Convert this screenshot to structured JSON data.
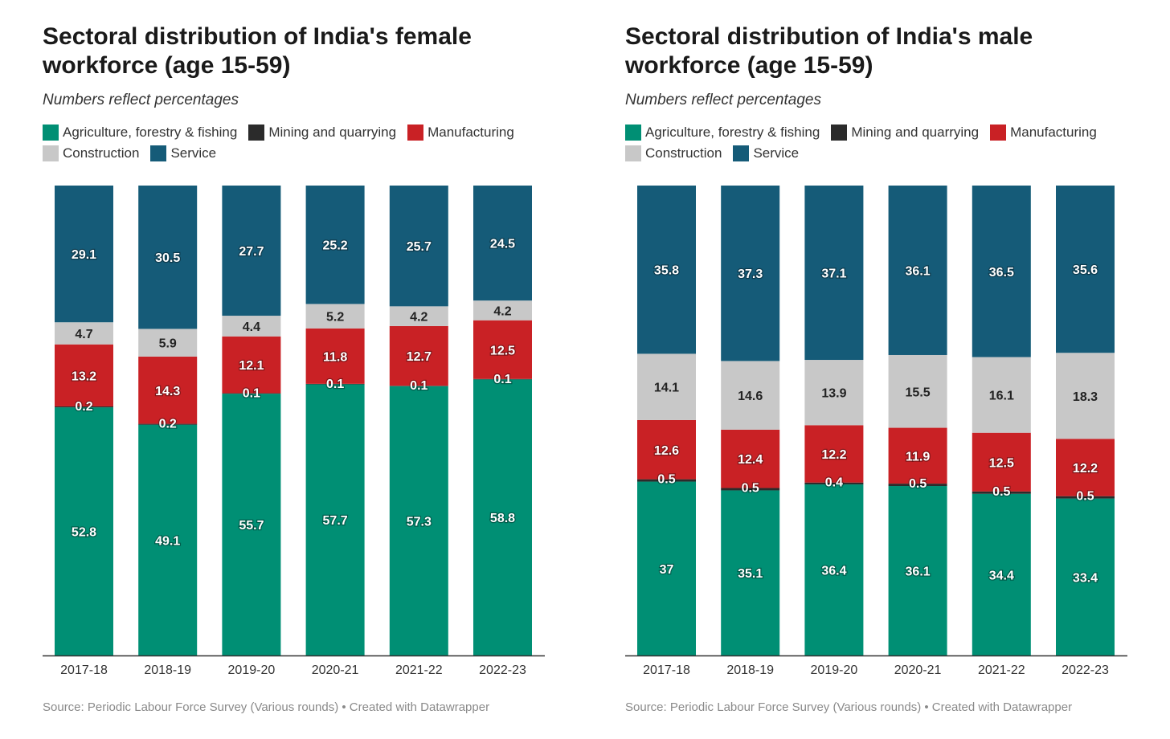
{
  "colors": {
    "agriculture": "#008f74",
    "mining": "#2b2b2b",
    "manufacturing": "#c92125",
    "construction": "#c8c8c8",
    "service": "#155b78",
    "axis": "#333333"
  },
  "legend": [
    {
      "key": "agriculture",
      "label": "Agriculture, forestry & fishing",
      "color": "#008f74"
    },
    {
      "key": "mining",
      "label": "Mining and quarrying",
      "color": "#2b2b2b"
    },
    {
      "key": "manufacturing",
      "label": "Manufacturing",
      "color": "#c92125"
    },
    {
      "key": "construction",
      "label": "Construction",
      "color": "#c8c8c8"
    },
    {
      "key": "service",
      "label": "Service",
      "color": "#155b78"
    }
  ],
  "chart_data": [
    {
      "type": "bar",
      "stacked": true,
      "title": "Sectoral distribution of India's female workforce (age 15-59)",
      "subtitle": "Numbers reflect percentages",
      "source": "Source: Periodic Labour Force Survey (Various rounds) • Created with Datawrapper",
      "categories": [
        "2017-18",
        "2018-19",
        "2019-20",
        "2020-21",
        "2021-22",
        "2022-23"
      ],
      "series": [
        {
          "name": "Agriculture, forestry & fishing",
          "labels": [
            "52.8",
            "49.1",
            "55.7",
            "57.7",
            "57.3",
            "58.8"
          ],
          "values": [
            52.8,
            49.1,
            55.7,
            57.7,
            57.3,
            58.8
          ]
        },
        {
          "name": "Mining and quarrying",
          "labels": [
            "0.2",
            "0.2",
            "0.1",
            "0.1",
            "0.1",
            "0.1"
          ],
          "values": [
            0.2,
            0.2,
            0.1,
            0.1,
            0.1,
            0.1
          ]
        },
        {
          "name": "Manufacturing",
          "labels": [
            "13.2",
            "14.3",
            "12.1",
            "11.8",
            "12.7",
            "12.5"
          ],
          "values": [
            13.2,
            14.3,
            12.1,
            11.8,
            12.7,
            12.5
          ]
        },
        {
          "name": "Construction",
          "labels": [
            "4.7",
            "5.9",
            "4.4",
            "5.2",
            "4.2",
            "4.2"
          ],
          "values": [
            4.7,
            5.9,
            4.4,
            5.2,
            4.2,
            4.2
          ]
        },
        {
          "name": "Service",
          "labels": [
            "29.1",
            "30.5",
            "27.7",
            "25.2",
            "25.7",
            "24.5"
          ],
          "values": [
            29.1,
            30.5,
            27.7,
            25.2,
            25.7,
            24.5
          ]
        }
      ],
      "ylim": [
        0,
        100
      ],
      "grid": false,
      "legend_position": "top-left"
    },
    {
      "type": "bar",
      "stacked": true,
      "title": "Sectoral distribution of India's male workforce (age 15-59)",
      "subtitle": "Numbers reflect percentages",
      "source": "Source: Periodic Labour Force Survey (Various rounds) • Created with Datawrapper",
      "categories": [
        "2017-18",
        "2018-19",
        "2019-20",
        "2020-21",
        "2021-22",
        "2022-23"
      ],
      "series": [
        {
          "name": "Agriculture, forestry & fishing",
          "labels": [
            "37",
            "35.1",
            "36.4",
            "36.1",
            "34.4",
            "33.4"
          ],
          "values": [
            37,
            35.1,
            36.4,
            36.1,
            34.4,
            33.4
          ]
        },
        {
          "name": "Mining and quarrying",
          "labels": [
            "0.5",
            "0.5",
            "0.4",
            "0.5",
            "0.5",
            "0.5"
          ],
          "values": [
            0.5,
            0.5,
            0.4,
            0.5,
            0.5,
            0.5
          ]
        },
        {
          "name": "Manufacturing",
          "labels": [
            "12.6",
            "12.4",
            "12.2",
            "11.9",
            "12.5",
            "12.2"
          ],
          "values": [
            12.6,
            12.4,
            12.2,
            11.9,
            12.5,
            12.2
          ]
        },
        {
          "name": "Construction",
          "labels": [
            "14.1",
            "14.6",
            "13.9",
            "15.5",
            "16.1",
            "18.3"
          ],
          "values": [
            14.1,
            14.6,
            13.9,
            15.5,
            16.1,
            18.3
          ]
        },
        {
          "name": "Service",
          "labels": [
            "35.8",
            "37.3",
            "37.1",
            "36.1",
            "36.5",
            "35.6"
          ],
          "values": [
            35.8,
            37.3,
            37.1,
            36.1,
            36.5,
            35.6
          ]
        }
      ],
      "ylim": [
        0,
        100
      ],
      "grid": false,
      "legend_position": "top-left"
    }
  ]
}
